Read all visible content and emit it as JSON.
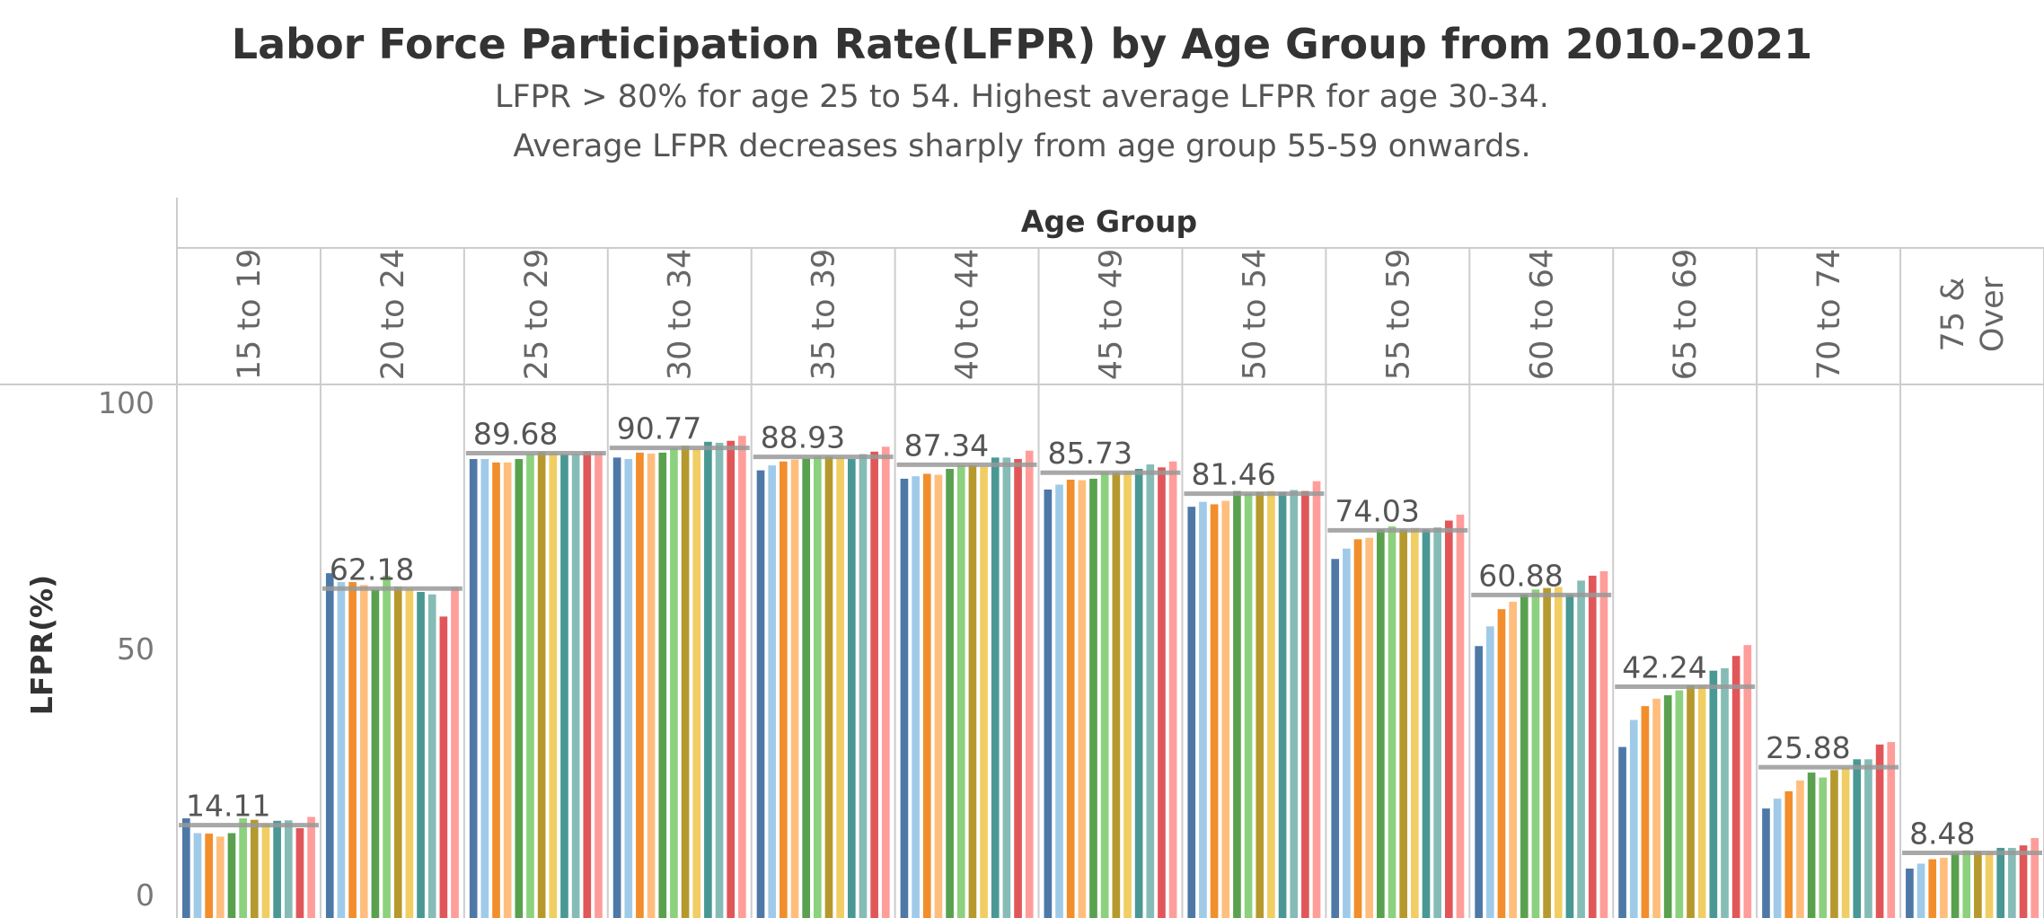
{
  "title": "Labor Force Participation Rate(LFPR) by Age Group from 2010-2021",
  "subtitle_lines": [
    "LFPR > 80% for age 25 to 54. Highest average LFPR for age 30-34.",
    "Average LFPR decreases  sharply from age group 55-59 onwards."
  ],
  "colors": {
    "bars": [
      "#4e79a7",
      "#a0cbe8",
      "#f28e2b",
      "#ffbe7d",
      "#59a14f",
      "#8cd17d",
      "#b6992d",
      "#f1ce63",
      "#499894",
      "#86bcb6",
      "#e15759",
      "#ff9d9a"
    ],
    "avg_line": "#999999",
    "grid": "#cccccc"
  },
  "chart_data": {
    "type": "bar",
    "title": "Labor Force Participation Rate(LFPR) by Age Group from 2010-2021",
    "column_header": "Age Group",
    "ylabel": "LFPR(%)",
    "ylim": [
      0,
      100
    ],
    "y_ticks": [
      0,
      50,
      100
    ],
    "legend": "none",
    "groups": [
      {
        "label": "15 to 19",
        "average": 14.11,
        "average_label": "14.11",
        "values": [
          15.5,
          12.5,
          12.4,
          11.8,
          12.5,
          15.5,
          15.2,
          14.5,
          15.0,
          15.1,
          13.5,
          15.8
        ]
      },
      {
        "label": "20 to 24",
        "average": 62.18,
        "average_label": "62.18",
        "values": [
          65.3,
          63.5,
          63.5,
          62.9,
          62.0,
          64.8,
          62.6,
          62.2,
          61.5,
          61.0,
          56.5,
          62.5
        ]
      },
      {
        "label": "25 to 29",
        "average": 89.68,
        "average_label": "89.68",
        "values": [
          88.5,
          88.5,
          87.8,
          87.8,
          88.5,
          89.5,
          90.0,
          89.8,
          89.5,
          89.5,
          90.0,
          89.8
        ]
      },
      {
        "label": "30 to 34",
        "average": 90.77,
        "average_label": "90.77",
        "values": [
          88.8,
          88.5,
          89.8,
          89.6,
          89.8,
          90.8,
          91.2,
          90.5,
          92.0,
          91.8,
          92.2,
          93.2
        ]
      },
      {
        "label": "35 to 39",
        "average": 88.93,
        "average_label": "88.93",
        "values": [
          86.2,
          87.2,
          88.0,
          88.4,
          88.6,
          89.0,
          89.0,
          88.8,
          88.5,
          89.5,
          90.0,
          91.0
        ]
      },
      {
        "label": "40 to 44",
        "average": 87.34,
        "average_label": "87.34",
        "values": [
          84.5,
          85.0,
          85.5,
          85.3,
          86.5,
          87.2,
          87.2,
          87.0,
          88.8,
          88.8,
          88.5,
          90.2
        ]
      },
      {
        "label": "45 to 49",
        "average": 85.73,
        "average_label": "85.73",
        "values": [
          82.3,
          83.3,
          84.3,
          84.2,
          84.5,
          85.8,
          85.8,
          86.0,
          86.5,
          87.4,
          86.8,
          88.0
        ]
      },
      {
        "label": "50 to 54",
        "average": 81.46,
        "average_label": "81.46",
        "values": [
          78.8,
          79.8,
          79.3,
          80.0,
          82.0,
          81.5,
          81.8,
          82.0,
          81.8,
          82.2,
          82.0,
          84.0
        ]
      },
      {
        "label": "55 to 59",
        "average": 74.03,
        "average_label": "74.03",
        "values": [
          68.2,
          70.3,
          72.2,
          72.5,
          74.2,
          74.8,
          74.2,
          74.5,
          74.2,
          74.6,
          76.0,
          77.2
        ]
      },
      {
        "label": "60 to 64",
        "average": 60.88,
        "average_label": "60.88",
        "values": [
          50.5,
          54.5,
          58.0,
          59.5,
          61.0,
          62.0,
          62.3,
          62.5,
          61.0,
          63.8,
          64.8,
          65.7
        ]
      },
      {
        "label": "65 to 69",
        "average": 42.24,
        "average_label": "42.24",
        "values": [
          30.0,
          35.5,
          38.3,
          39.8,
          40.5,
          41.5,
          42.5,
          42.5,
          45.5,
          46.0,
          48.5,
          50.7
        ]
      },
      {
        "label": "70 to 74",
        "average": 25.88,
        "average_label": "25.88",
        "values": [
          17.5,
          19.5,
          21.0,
          23.2,
          24.8,
          23.8,
          25.3,
          25.8,
          27.5,
          27.5,
          30.5,
          31.0
        ]
      },
      {
        "label": "75 & Over",
        "label_lines": [
          "75 &",
          "Over"
        ],
        "average": 8.48,
        "average_label": "8.48",
        "values": [
          5.3,
          6.3,
          7.2,
          7.5,
          8.5,
          9.0,
          8.8,
          8.6,
          9.5,
          9.5,
          10.0,
          11.5
        ]
      }
    ]
  }
}
